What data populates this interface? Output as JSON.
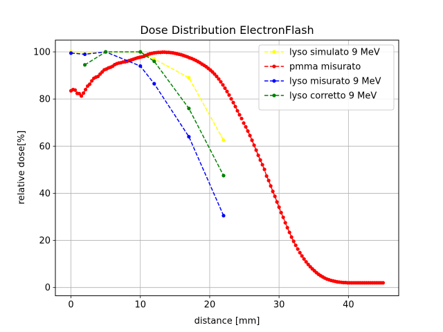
{
  "chart_data": {
    "type": "line",
    "title": "Dose Distribution ElectronFlash",
    "xlabel": "distance [mm]",
    "ylabel": "relative dose[%]",
    "xlim": [
      -2.25,
      47.25
    ],
    "ylim": [
      -3.5,
      105
    ],
    "xticks": [
      0,
      10,
      20,
      30,
      40
    ],
    "yticks": [
      0,
      20,
      40,
      60,
      80,
      100
    ],
    "grid": true,
    "legend_position": "top-right",
    "series": [
      {
        "name": "lyso simulato 9 MeV",
        "color": "#ffff00",
        "linestyle": "dashed",
        "x": [
          0,
          5,
          10,
          12,
          17,
          22
        ],
        "y": [
          100,
          100,
          100,
          97,
          89,
          62.5
        ]
      },
      {
        "name": "pmma misurato",
        "color": "#ff0000",
        "linestyle": "dashed",
        "x": [
          0,
          0.3,
          0.6,
          0.9,
          1.2,
          1.5,
          1.8,
          2.1,
          2.4,
          2.7,
          3.0,
          3.3,
          3.6,
          3.9,
          4.2,
          4.5,
          4.8,
          5.1,
          5.4,
          5.7,
          6.0,
          6.3,
          6.6,
          6.9,
          7.2,
          7.5,
          7.8,
          8.1,
          8.4,
          8.7,
          9.0,
          9.3,
          9.6,
          9.9,
          10.2,
          10.5,
          10.8,
          11.1,
          11.4,
          11.7,
          12.0,
          12.3,
          12.6,
          12.9,
          13.2,
          13.5,
          13.8,
          14.1,
          14.4,
          14.7,
          15.0,
          15.3,
          15.6,
          15.9,
          16.2,
          16.5,
          16.8,
          17.1,
          17.4,
          17.7,
          18.0,
          18.3,
          18.6,
          18.9,
          19.2,
          19.5,
          19.8,
          20.1,
          20.4,
          20.7,
          21.0,
          21.3,
          21.6,
          21.9,
          22.2,
          22.5,
          22.8,
          23.1,
          23.4,
          23.7,
          24.0,
          24.3,
          24.6,
          24.9,
          25.2,
          25.5,
          25.8,
          26.1,
          26.4,
          26.7,
          27.0,
          27.3,
          27.6,
          27.9,
          28.2,
          28.5,
          28.8,
          29.1,
          29.4,
          29.7,
          30.0,
          30.3,
          30.6,
          30.9,
          31.2,
          31.5,
          31.8,
          32.1,
          32.4,
          32.7,
          33.0,
          33.3,
          33.6,
          33.9,
          34.2,
          34.5,
          34.8,
          35.1,
          35.4,
          35.7,
          36.0,
          36.3,
          36.6,
          36.9,
          37.2,
          37.5,
          37.8,
          38.1,
          38.4,
          38.7,
          39.0,
          39.3,
          39.6,
          39.9,
          40.2,
          40.5,
          40.8,
          41.1,
          41.4,
          41.7,
          42.0,
          42.3,
          42.6,
          42.9,
          43.2,
          43.5,
          43.8,
          44.1,
          44.4,
          44.7,
          45.0
        ],
        "y": [
          83.5,
          84,
          83.8,
          82.4,
          82.3,
          81.3,
          82.5,
          84,
          85.5,
          86.3,
          87.7,
          88.8,
          89.3,
          89.6,
          90.6,
          91.5,
          92.4,
          92.7,
          93.2,
          93.5,
          93.9,
          94.6,
          95,
          95.3,
          95.4,
          95.7,
          95.8,
          96,
          96.3,
          96.6,
          96.9,
          97.2,
          97.5,
          97.7,
          97.9,
          98.1,
          98.5,
          98.9,
          99.2,
          99.4,
          99.6,
          99.7,
          99.8,
          99.8,
          99.9,
          99.9,
          99.8,
          99.8,
          99.7,
          99.6,
          99.4,
          99.2,
          99,
          98.8,
          98.5,
          98.2,
          97.9,
          97.5,
          97.2,
          96.8,
          96.4,
          95.9,
          95.4,
          94.8,
          94.3,
          93.7,
          93,
          92.3,
          91.5,
          90.6,
          89.6,
          88.5,
          87.3,
          86,
          84.6,
          83.2,
          81.7,
          80.1,
          78.5,
          76.8,
          75,
          73.3,
          71.7,
          69.8,
          68.2,
          66.4,
          64.5,
          62.5,
          60.4,
          58.3,
          56.1,
          54.1,
          52.1,
          50.1,
          47.3,
          45.4,
          43.1,
          40.8,
          38.7,
          36.3,
          34.1,
          31.8,
          29.8,
          27.5,
          25.4,
          23.4,
          21.4,
          19.6,
          17.9,
          16.3,
          14.8,
          13.4,
          12.1,
          10.9,
          9.8,
          8.8,
          7.9,
          7.1,
          6.3,
          5.6,
          5,
          4.5,
          4,
          3.6,
          3.3,
          3,
          2.8,
          2.6,
          2.4,
          2.3,
          2.2,
          2.1,
          2.1,
          2,
          2,
          2,
          2,
          2,
          2,
          2,
          2,
          2,
          2,
          2,
          2,
          2,
          2,
          2,
          2,
          2,
          2
        ]
      },
      {
        "name": "lyso misurato 9 MeV",
        "color": "#0000ff",
        "linestyle": "dashed",
        "x": [
          0,
          2,
          5,
          10,
          12,
          17,
          22
        ],
        "y": [
          99.5,
          99,
          100,
          94,
          86.5,
          64,
          30.5
        ]
      },
      {
        "name": "lyso corretto 9 MeV",
        "color": "#008000",
        "linestyle": "dashed",
        "x": [
          2,
          5,
          10,
          12,
          17,
          22
        ],
        "y": [
          94.5,
          100,
          100,
          96,
          76,
          47.5
        ]
      }
    ]
  }
}
